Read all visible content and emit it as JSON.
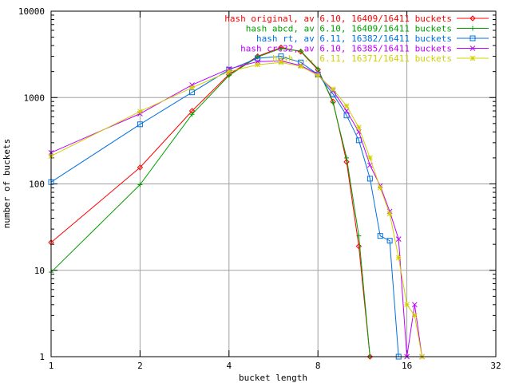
{
  "chart_data": {
    "type": "line",
    "title": "",
    "xlabel": "bucket length",
    "ylabel": "number of buckets",
    "x_scale": "log2",
    "y_scale": "log10",
    "xlim": [
      1,
      32
    ],
    "ylim": [
      1,
      10000
    ],
    "x_ticks": [
      1,
      2,
      4,
      8,
      16,
      32
    ],
    "x_tick_labels": [
      "1",
      "2",
      "4",
      "8",
      "16",
      "32"
    ],
    "y_ticks": [
      1,
      10,
      100,
      1000,
      10000
    ],
    "y_tick_labels": [
      "1",
      "10",
      "100",
      "1000",
      "10000"
    ],
    "grid": true,
    "legend_position": "top-right",
    "series": [
      {
        "name": "hash original, av 6.10, 16409/16411 buckets",
        "color": "#ff0000",
        "marker": "diamond",
        "x": [
          1,
          2,
          3,
          4,
          5,
          6,
          7,
          8,
          9,
          10,
          11,
          12
        ],
        "y": [
          21,
          155,
          700,
          1850,
          3000,
          3800,
          3400,
          2100,
          900,
          180,
          19,
          1
        ]
      },
      {
        "name": "hash abcd, av 6.10, 16409/16411 buckets",
        "color": "#00a000",
        "marker": "plus",
        "x": [
          1,
          2,
          3,
          4,
          5,
          6,
          7,
          8,
          9,
          10,
          11,
          12
        ],
        "y": [
          9.5,
          98,
          640,
          1800,
          2950,
          3700,
          3450,
          2150,
          870,
          200,
          25,
          1
        ]
      },
      {
        "name": "hash rt, av 6.11, 16382/16411 buckets",
        "color": "#0070e0",
        "marker": "square",
        "x": [
          1,
          2,
          3,
          4,
          5,
          6,
          7,
          8,
          9,
          10,
          11,
          12,
          13,
          14,
          15
        ],
        "y": [
          105,
          490,
          1150,
          2100,
          2850,
          3000,
          2550,
          1850,
          1100,
          620,
          320,
          115,
          25,
          22,
          1
        ]
      },
      {
        "name": "hash crc32, av 6.10, 16385/16411 buckets",
        "color": "#c000ff",
        "marker": "cross",
        "x": [
          1,
          2,
          3,
          4,
          5,
          6,
          7,
          8,
          9,
          10,
          11,
          12,
          13,
          14,
          15,
          16,
          17,
          18
        ],
        "y": [
          230,
          650,
          1400,
          2150,
          2600,
          2650,
          2350,
          1850,
          1200,
          700,
          400,
          165,
          95,
          48,
          23,
          1,
          4,
          1
        ]
      },
      {
        "name": "hash ... 6.11, 16371/16411 buckets",
        "color": "#d0d000",
        "marker": "star",
        "x": [
          1,
          2,
          3,
          4,
          5,
          6,
          7,
          8,
          9,
          10,
          11,
          12,
          13,
          14,
          15,
          16,
          17,
          18
        ],
        "y": [
          210,
          690,
          1300,
          2000,
          2400,
          2550,
          2300,
          1800,
          1250,
          800,
          450,
          200,
          90,
          45,
          14,
          4,
          3,
          1
        ]
      }
    ]
  }
}
